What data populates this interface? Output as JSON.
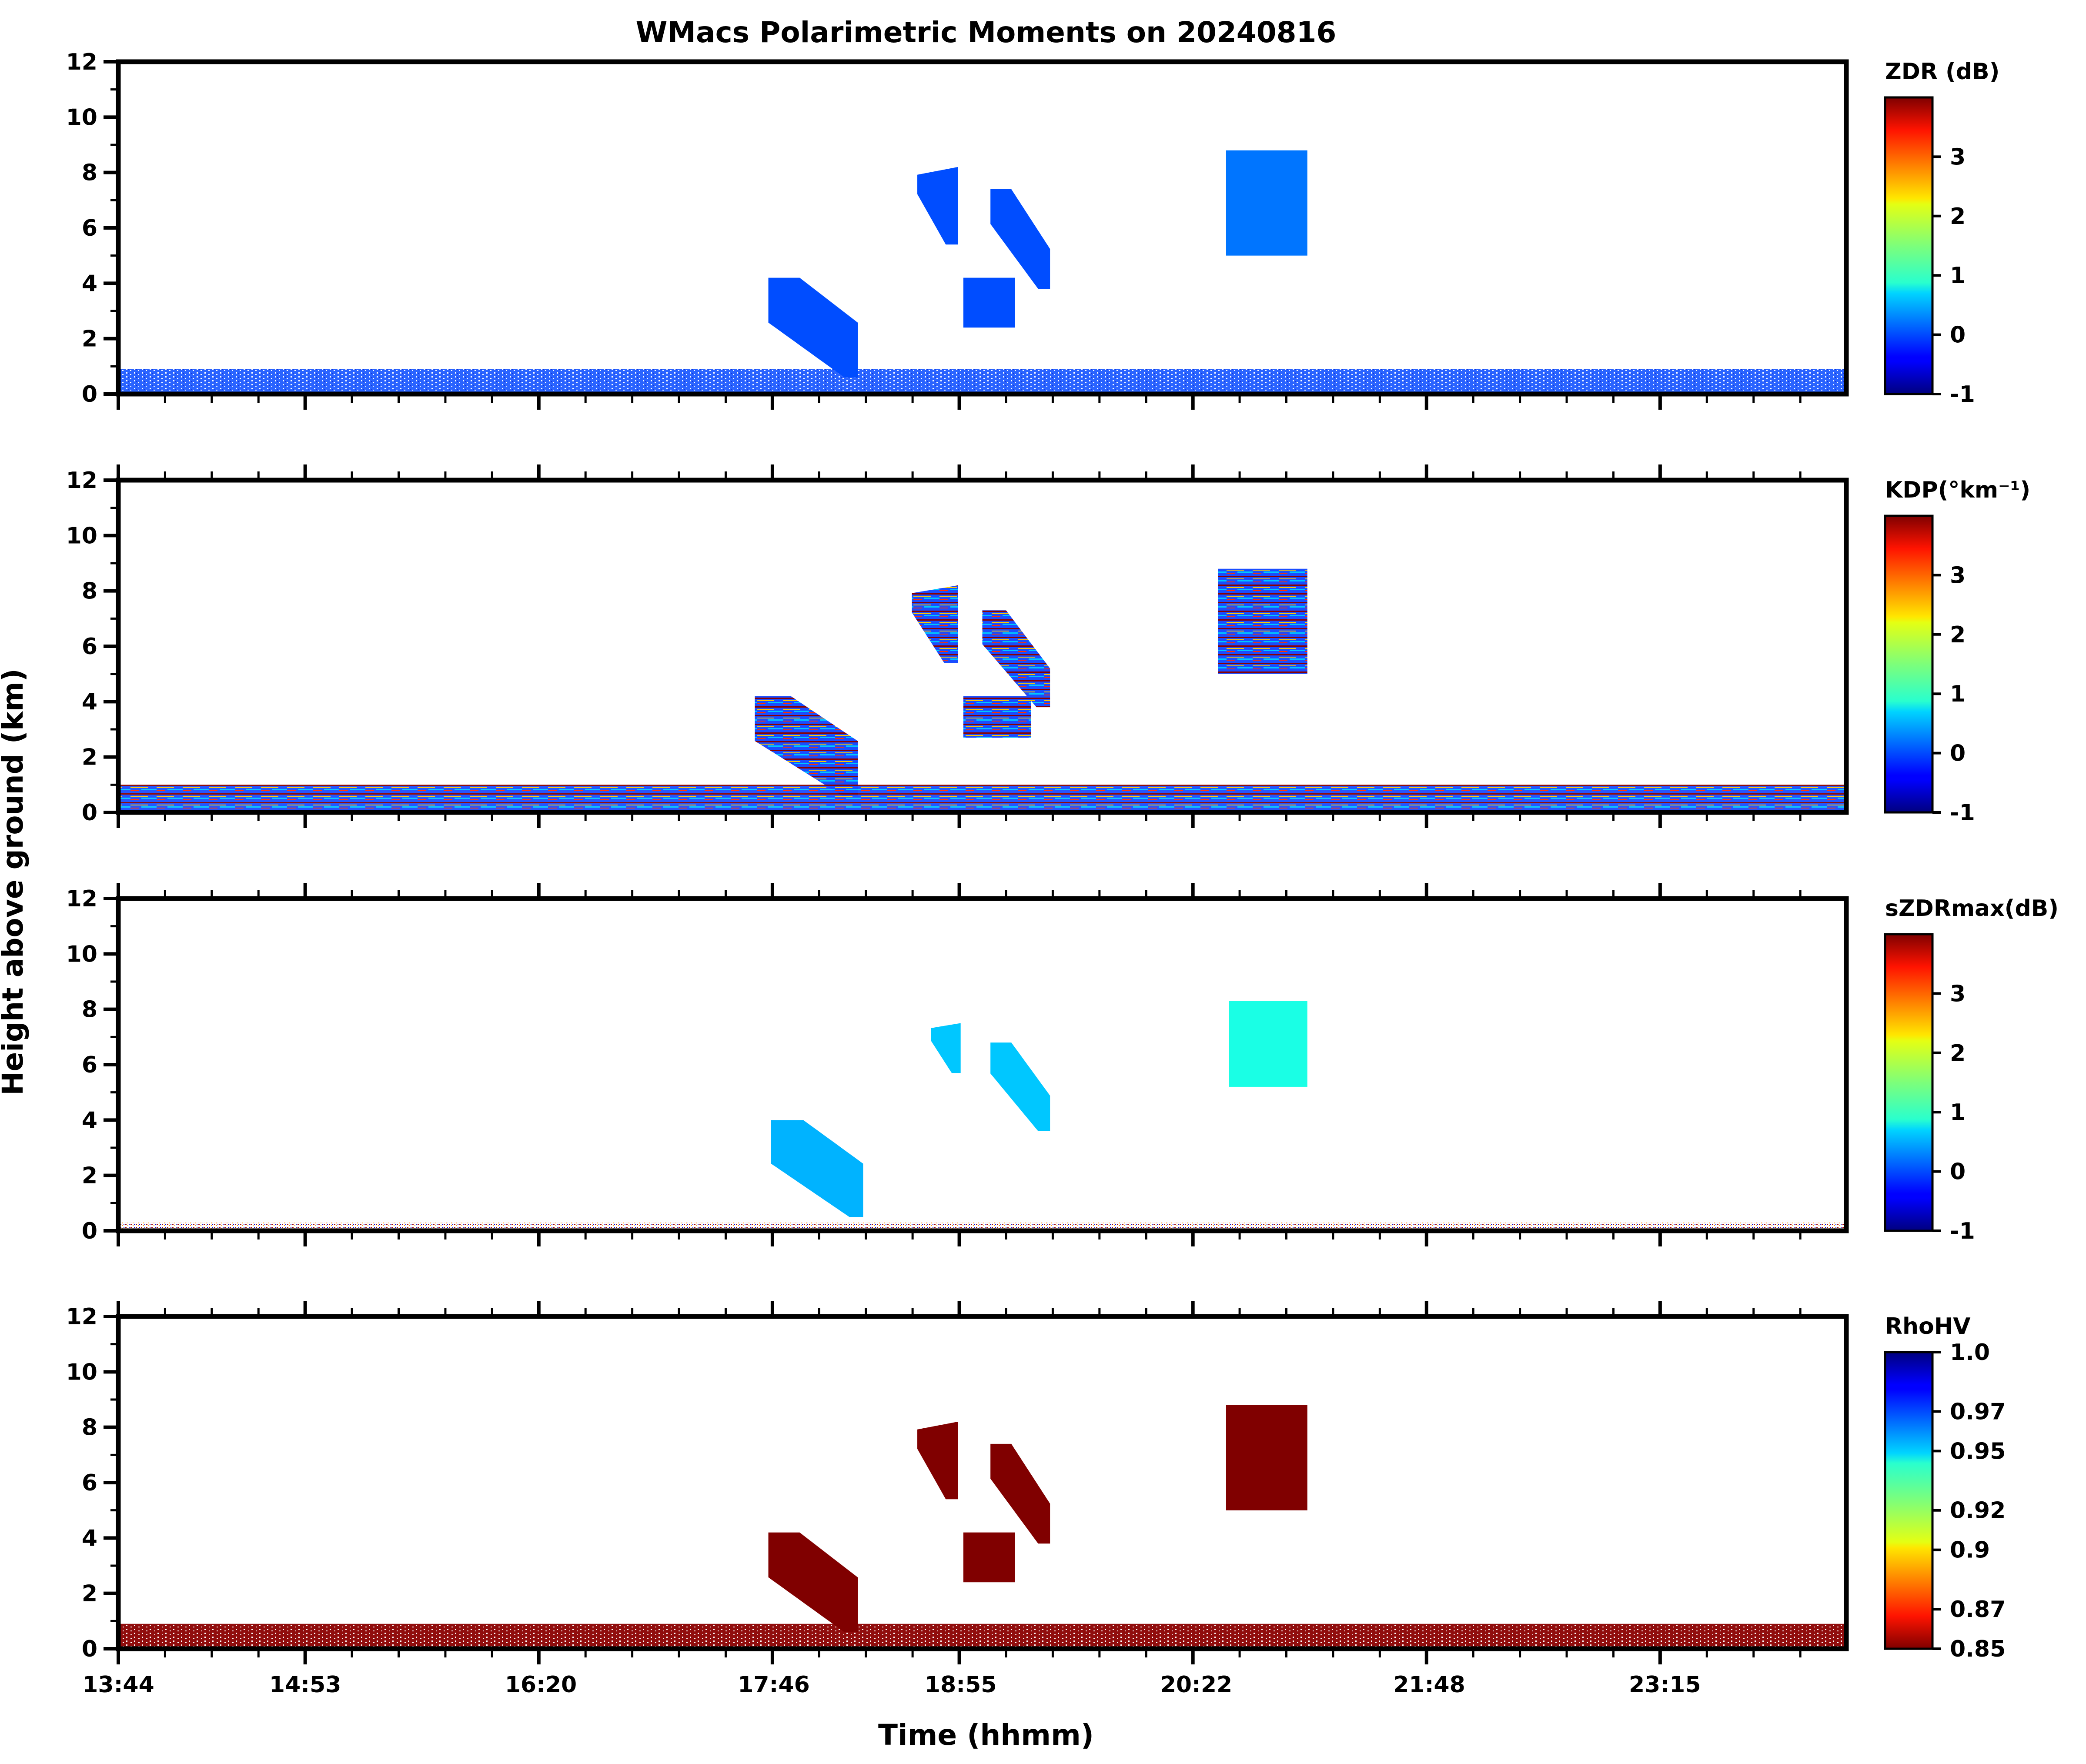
{
  "chart_data": {
    "type": "heatmap",
    "title": "WMacs Polarimetric Moments on 20240816",
    "xlabel": "Time (hhmm)",
    "ylabel": "Height above ground (km)",
    "x_range": [
      "13:44",
      "24:22"
    ],
    "x_tick_labels": [
      "13:44",
      "14:53",
      "16:20",
      "17:46",
      "18:55",
      "20:22",
      "21:48",
      "23:15"
    ],
    "ylim": [
      0,
      12
    ],
    "y_tick_labels": [
      "0",
      "2",
      "4",
      "6",
      "8",
      "10",
      "12"
    ],
    "colormap": "jet",
    "grid": false,
    "panels": [
      {
        "variable": "ZDR",
        "colorbar_label": "ZDR (dB)",
        "cbar_range": [
          -1,
          4
        ],
        "cbar_ticks": [
          "-1",
          "0",
          "1",
          "2",
          "3"
        ],
        "cbar_reverse": false,
        "features": [
          {
            "name": "boundary-layer",
            "time_start": "13:44",
            "time_end": "24:22",
            "height_km": [
              0,
              0.9
            ],
            "dominant": "0.0"
          },
          {
            "name": "fallstreak-1745",
            "time_start": "17:44",
            "time_end": "18:17",
            "height_km": [
              0.6,
              4.2
            ],
            "dominant": "0.0"
          },
          {
            "name": "cloud-1830",
            "time_start": "18:39",
            "time_end": "18:54",
            "height_km": [
              5.4,
              8.2
            ],
            "dominant": "0.0"
          },
          {
            "name": "cloud-1900",
            "time_start": "19:06",
            "time_end": "19:28",
            "height_km": [
              3.8,
              7.4
            ],
            "dominant": "0.0"
          },
          {
            "name": "cloud-1856-low",
            "time_start": "18:56",
            "time_end": "19:15",
            "height_km": [
              2.4,
              4.2
            ],
            "dominant": "0.0"
          },
          {
            "name": "cloud-2030",
            "time_start": "20:33",
            "time_end": "21:03",
            "height_km": [
              5.0,
              8.8
            ],
            "dominant": "0.2"
          }
        ]
      },
      {
        "variable": "KDP",
        "colorbar_label": "KDP(°km⁻¹)",
        "cbar_range": [
          -1,
          4
        ],
        "cbar_ticks": [
          "-1",
          "0",
          "1",
          "2",
          "3"
        ],
        "cbar_reverse": false,
        "features": [
          {
            "name": "boundary-layer",
            "time_start": "13:44",
            "time_end": "24:22",
            "height_km": [
              0,
              1.0
            ],
            "dominant": "-0.1"
          },
          {
            "name": "fallstreak-1745",
            "time_start": "17:39",
            "time_end": "18:17",
            "height_km": [
              0.6,
              4.2
            ],
            "dominant": "0.0"
          },
          {
            "name": "cloud-1830",
            "time_start": "18:37",
            "time_end": "18:54",
            "height_km": [
              5.4,
              8.2
            ],
            "dominant": "0.0"
          },
          {
            "name": "cloud-1900",
            "time_start": "19:03",
            "time_end": "19:28",
            "height_km": [
              3.8,
              7.3
            ],
            "dominant": "0.0"
          },
          {
            "name": "cloud-1856-low",
            "time_start": "18:56",
            "time_end": "19:21",
            "height_km": [
              2.7,
              4.2
            ],
            "dominant": "-0.1"
          },
          {
            "name": "cloud-2030",
            "time_start": "20:30",
            "time_end": "21:03",
            "height_km": [
              5.0,
              8.8
            ],
            "dominant": "0.0"
          }
        ]
      },
      {
        "variable": "sZDRmax",
        "colorbar_label": "sZDRmax(dB)",
        "cbar_range": [
          -1,
          4
        ],
        "cbar_ticks": [
          "-1",
          "0",
          "1",
          "2",
          "3"
        ],
        "cbar_reverse": false,
        "features": [
          {
            "name": "surface-layer",
            "time_start": "13:44",
            "time_end": "24:22",
            "height_km": [
              0,
              0.3
            ],
            "dominant": "3.5"
          },
          {
            "name": "fallstreak-1745",
            "time_start": "17:45",
            "time_end": "18:19",
            "height_km": [
              0.5,
              4.0
            ],
            "dominant": "0.5"
          },
          {
            "name": "cloud-1830",
            "time_start": "18:44",
            "time_end": "18:55",
            "height_km": [
              5.7,
              7.5
            ],
            "dominant": "0.6"
          },
          {
            "name": "cloud-1900",
            "time_start": "19:06",
            "time_end": "19:28",
            "height_km": [
              3.6,
              6.8
            ],
            "dominant": "0.6"
          },
          {
            "name": "cloud-2030",
            "time_start": "20:34",
            "time_end": "21:03",
            "height_km": [
              5.2,
              8.3
            ],
            "dominant": "1.0"
          }
        ]
      },
      {
        "variable": "RhoHV",
        "colorbar_label": "RhoHV",
        "cbar_range": [
          0.85,
          1.0
        ],
        "cbar_ticks": [
          "0.85",
          "0.87",
          "0.9",
          "0.92",
          "0.95",
          "0.97",
          "1.0"
        ],
        "cbar_reverse": true,
        "features": [
          {
            "name": "boundary-layer",
            "time_start": "13:44",
            "time_end": "24:22",
            "height_km": [
              0,
              0.9
            ],
            "dominant": "0.85"
          },
          {
            "name": "fallstreak-1745",
            "time_start": "17:44",
            "time_end": "18:17",
            "height_km": [
              0.6,
              4.2
            ],
            "dominant": "0.85"
          },
          {
            "name": "cloud-1830",
            "time_start": "18:39",
            "time_end": "18:54",
            "height_km": [
              5.4,
              8.2
            ],
            "dominant": "0.85"
          },
          {
            "name": "cloud-1900",
            "time_start": "19:06",
            "time_end": "19:28",
            "height_km": [
              3.8,
              7.4
            ],
            "dominant": "0.85"
          },
          {
            "name": "cloud-1856-low",
            "time_start": "18:56",
            "time_end": "19:15",
            "height_km": [
              2.4,
              4.2
            ],
            "dominant": "0.85"
          },
          {
            "name": "cloud-2030",
            "time_start": "20:33",
            "time_end": "21:03",
            "height_km": [
              5.0,
              8.8
            ],
            "dominant": "0.85"
          }
        ]
      }
    ]
  }
}
